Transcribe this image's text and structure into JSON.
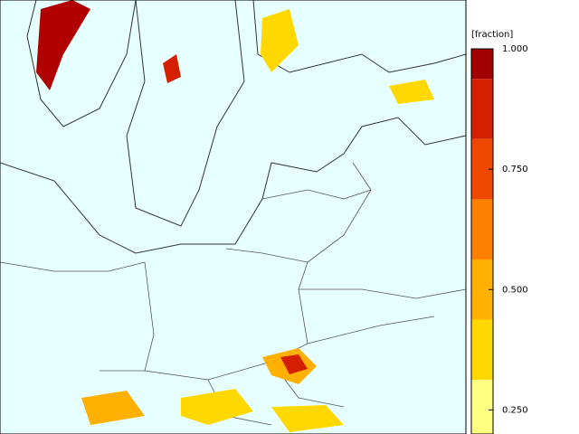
{
  "colorbar": {
    "label": "[fraction]",
    "lim": [
      0.2,
      1.0
    ],
    "ticks": [
      {
        "value": 1.0,
        "label": "1.000"
      },
      {
        "value": 0.75,
        "label": "0.750"
      },
      {
        "value": 0.5,
        "label": "0.500"
      },
      {
        "value": 0.25,
        "label": "0.250"
      }
    ],
    "bands": [
      {
        "from": 0.9375,
        "to": 1.0,
        "color": "#a00000"
      },
      {
        "from": 0.8125,
        "to": 0.9375,
        "color": "#d42000"
      },
      {
        "from": 0.6875,
        "to": 0.8125,
        "color": "#f04800"
      },
      {
        "from": 0.5625,
        "to": 0.6875,
        "color": "#ff8000"
      },
      {
        "from": 0.4375,
        "to": 0.5625,
        "color": "#ffb000"
      },
      {
        "from": 0.3125,
        "to": 0.4375,
        "color": "#ffd800"
      },
      {
        "from": 0.1875,
        "to": 0.3125,
        "color": "#ffff80"
      }
    ]
  }
}
